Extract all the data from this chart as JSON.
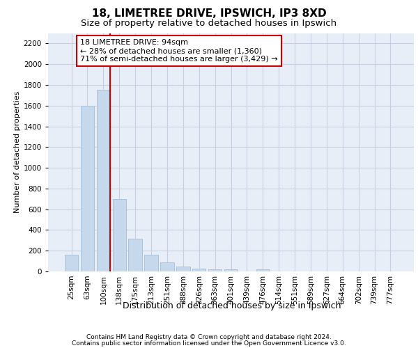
{
  "title1": "18, LIMETREE DRIVE, IPSWICH, IP3 8XD",
  "title2": "Size of property relative to detached houses in Ipswich",
  "xlabel": "Distribution of detached houses by size in Ipswich",
  "ylabel": "Number of detached properties",
  "categories": [
    "25sqm",
    "63sqm",
    "100sqm",
    "138sqm",
    "175sqm",
    "213sqm",
    "251sqm",
    "288sqm",
    "326sqm",
    "363sqm",
    "401sqm",
    "439sqm",
    "476sqm",
    "514sqm",
    "551sqm",
    "589sqm",
    "627sqm",
    "664sqm",
    "702sqm",
    "739sqm",
    "777sqm"
  ],
  "values": [
    160,
    1595,
    1755,
    700,
    315,
    160,
    85,
    50,
    30,
    20,
    20,
    0,
    20,
    0,
    0,
    0,
    0,
    0,
    0,
    0,
    0
  ],
  "bar_color": "#c6d9ec",
  "bar_edgecolor": "#a8c4dc",
  "vline_x": 2.42,
  "vline_color": "#cc0000",
  "annotation_text": "18 LIMETREE DRIVE: 94sqm\n← 28% of detached houses are smaller (1,360)\n71% of semi-detached houses are larger (3,429) →",
  "annotation_box_color": "white",
  "annotation_box_edgecolor": "#cc0000",
  "ylim_max": 2300,
  "yticks": [
    0,
    200,
    400,
    600,
    800,
    1000,
    1200,
    1400,
    1600,
    1800,
    2000,
    2200
  ],
  "footnote1": "Contains HM Land Registry data © Crown copyright and database right 2024.",
  "footnote2": "Contains public sector information licensed under the Open Government Licence v3.0.",
  "bg_color": "#e8eef8",
  "grid_color": "#c8d0e0",
  "title1_fontsize": 11,
  "title2_fontsize": 9.5,
  "ylabel_fontsize": 8,
  "xlabel_fontsize": 9,
  "tick_fontsize": 7.5,
  "annotation_fontsize": 8,
  "footnote_fontsize": 6.5
}
